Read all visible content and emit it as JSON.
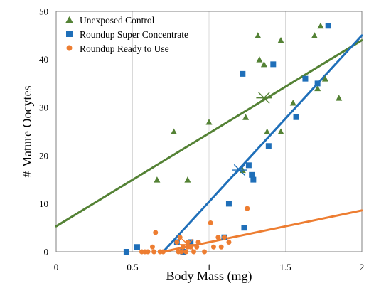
{
  "chart_data": {
    "type": "scatter",
    "xlabel": "Body Mass (mg)",
    "ylabel": "# Mature Oocytes",
    "xlim": [
      0,
      2
    ],
    "ylim": [
      0,
      50
    ],
    "x_ticks": [
      0,
      0.5,
      1,
      1.5,
      2
    ],
    "x_tick_labels": [
      "0",
      "0.5",
      "1",
      "1.5",
      "2"
    ],
    "y_ticks": [
      0,
      10,
      20,
      30,
      40,
      50
    ],
    "y_tick_labels": [
      "0",
      "10",
      "20",
      "30",
      "40",
      "50"
    ],
    "grid": "vertical",
    "legend_position": "top-left",
    "series": [
      {
        "name": "Unexposed Control",
        "color": "#548235",
        "marker": "triangle",
        "points": [
          [
            0.66,
            15
          ],
          [
            0.77,
            25
          ],
          [
            0.86,
            15
          ],
          [
            1.0,
            27
          ],
          [
            1.22,
            17
          ],
          [
            1.24,
            28
          ],
          [
            1.32,
            45
          ],
          [
            1.33,
            40
          ],
          [
            1.36,
            39
          ],
          [
            1.38,
            25
          ],
          [
            1.47,
            44
          ],
          [
            1.47,
            25
          ],
          [
            1.55,
            31
          ],
          [
            1.69,
            45
          ],
          [
            1.71,
            34
          ],
          [
            1.73,
            47
          ],
          [
            1.76,
            36
          ],
          [
            1.85,
            32
          ]
        ],
        "trend": [
          [
            0,
            5.3
          ],
          [
            2,
            44
          ]
        ],
        "mean": [
          1.36,
          32
        ]
      },
      {
        "name": "Roundup Super Concentrate",
        "color": "#1F6FB9",
        "marker": "square",
        "points": [
          [
            0.46,
            0
          ],
          [
            0.53,
            1
          ],
          [
            0.79,
            2
          ],
          [
            0.83,
            0
          ],
          [
            0.88,
            2
          ],
          [
            1.1,
            3
          ],
          [
            1.13,
            10
          ],
          [
            1.22,
            37
          ],
          [
            1.23,
            5
          ],
          [
            1.26,
            18
          ],
          [
            1.28,
            16
          ],
          [
            1.29,
            15
          ],
          [
            1.39,
            22
          ],
          [
            1.42,
            39
          ],
          [
            1.57,
            28
          ],
          [
            1.63,
            36
          ],
          [
            1.71,
            35
          ],
          [
            1.78,
            47
          ]
        ],
        "trend": [
          [
            0.7,
            0
          ],
          [
            2,
            45
          ]
        ],
        "mean": [
          1.2,
          17
        ]
      },
      {
        "name": "Roundup Ready to Use",
        "color": "#ED7D31",
        "marker": "circle",
        "points": [
          [
            0.56,
            0
          ],
          [
            0.58,
            0
          ],
          [
            0.6,
            0
          ],
          [
            0.63,
            1
          ],
          [
            0.64,
            0
          ],
          [
            0.65,
            4
          ],
          [
            0.68,
            0
          ],
          [
            0.7,
            0
          ],
          [
            0.79,
            2
          ],
          [
            0.8,
            0
          ],
          [
            0.81,
            3
          ],
          [
            0.82,
            0
          ],
          [
            0.83,
            1
          ],
          [
            0.85,
            0
          ],
          [
            0.86,
            1
          ],
          [
            0.86,
            2
          ],
          [
            0.88,
            1
          ],
          [
            0.9,
            0
          ],
          [
            0.92,
            1
          ],
          [
            0.93,
            2
          ],
          [
            0.97,
            0
          ],
          [
            1.01,
            6
          ],
          [
            1.03,
            1
          ],
          [
            1.06,
            3
          ],
          [
            1.08,
            1
          ],
          [
            1.1,
            3
          ],
          [
            1.13,
            2
          ],
          [
            1.25,
            9
          ]
        ],
        "trend": [
          [
            0.7,
            0
          ],
          [
            2,
            8.6
          ]
        ],
        "mean": [
          0.86,
          1.5
        ]
      }
    ]
  }
}
